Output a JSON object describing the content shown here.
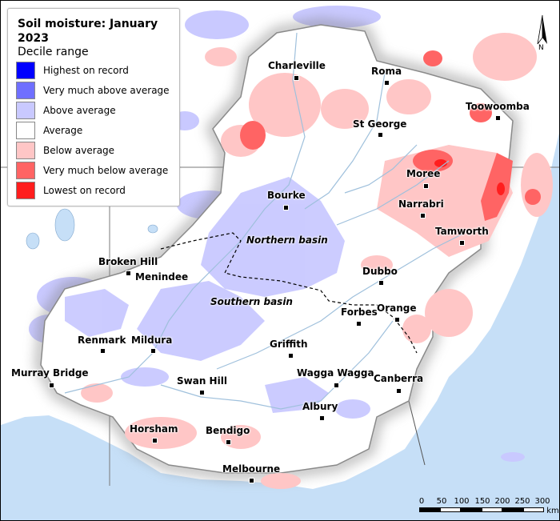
{
  "legend": {
    "title": "Soil moisture: January 2023",
    "subtitle": "Decile range",
    "items": [
      {
        "label": "Highest on record",
        "color": "#0000ff"
      },
      {
        "label": "Very much above average",
        "color": "#6f6fff"
      },
      {
        "label": "Above average",
        "color": "#c9c9ff"
      },
      {
        "label": "Average",
        "color": "#ffffff"
      },
      {
        "label": "Below average",
        "color": "#ffc6c6"
      },
      {
        "label": "Very much below average",
        "color": "#ff6464"
      },
      {
        "label": "Lowest on record",
        "color": "#ff1e1e"
      }
    ]
  },
  "towns": [
    {
      "name": "Charleville"
    },
    {
      "name": "Roma"
    },
    {
      "name": "Toowoomba"
    },
    {
      "name": "St George"
    },
    {
      "name": "Moree"
    },
    {
      "name": "Bourke"
    },
    {
      "name": "Narrabri"
    },
    {
      "name": "Tamworth"
    },
    {
      "name": "Broken Hill"
    },
    {
      "name": "Menindee"
    },
    {
      "name": "Dubbo"
    },
    {
      "name": "Forbes"
    },
    {
      "name": "Orange"
    },
    {
      "name": "Renmark"
    },
    {
      "name": "Mildura"
    },
    {
      "name": "Griffith"
    },
    {
      "name": "Murray Bridge"
    },
    {
      "name": "Swan Hill"
    },
    {
      "name": "Wagga Wagga"
    },
    {
      "name": "Canberra"
    },
    {
      "name": "Albury"
    },
    {
      "name": "Horsham"
    },
    {
      "name": "Bendigo"
    },
    {
      "name": "Melbourne"
    }
  ],
  "basins": [
    {
      "name": "Northern basin"
    },
    {
      "name": "Southern basin"
    }
  ],
  "scale": {
    "ticks": [
      "0",
      "50",
      "100",
      "150",
      "200",
      "250",
      "300"
    ],
    "unit": "km"
  },
  "north": "N",
  "colors": {
    "ocean": "#c6dff7",
    "land": "#ffffff",
    "river": "#9fc0dc",
    "basin_outline": "#555555"
  }
}
